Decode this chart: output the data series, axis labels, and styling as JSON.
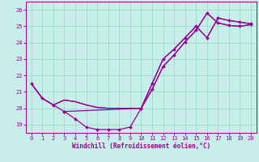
{
  "bg_color": "#c8eeea",
  "grid_color": "#99ddcc",
  "line_color": "#990099",
  "xlabel": "Windchill (Refroidissement éolien,°C)",
  "xlim": [
    -0.5,
    20.5
  ],
  "ylim": [
    18.5,
    26.5
  ],
  "yticks": [
    19,
    20,
    21,
    22,
    23,
    24,
    25,
    26
  ],
  "xticks": [
    0,
    1,
    2,
    3,
    4,
    5,
    6,
    7,
    8,
    9,
    10,
    11,
    12,
    13,
    14,
    15,
    16,
    17,
    18,
    19,
    20
  ],
  "curves": [
    {
      "x": [
        0,
        1,
        2,
        3,
        4,
        5,
        6,
        7,
        8,
        9,
        10,
        11,
        12,
        13,
        14,
        15,
        16,
        17,
        18,
        19,
        20
      ],
      "y": [
        21.5,
        20.6,
        20.2,
        19.8,
        19.35,
        18.85,
        18.7,
        18.7,
        18.7,
        18.85,
        20.0,
        21.15,
        22.55,
        23.25,
        24.05,
        24.75,
        25.8,
        25.2,
        25.05,
        25.0,
        25.1
      ],
      "marker": "D",
      "markersize": 2.0,
      "lw": 0.9
    },
    {
      "x": [
        0,
        1,
        2,
        3,
        4,
        5,
        6,
        7,
        8,
        9,
        10,
        11,
        12,
        13,
        14,
        15,
        16,
        17,
        18,
        19,
        20
      ],
      "y": [
        21.5,
        20.6,
        20.2,
        20.5,
        20.4,
        20.2,
        20.05,
        20.0,
        20.0,
        20.0,
        20.0,
        21.15,
        22.55,
        23.25,
        24.05,
        24.75,
        25.8,
        25.2,
        25.05,
        25.0,
        25.1
      ],
      "marker": null,
      "markersize": 0,
      "lw": 0.9
    },
    {
      "x": [
        0,
        1,
        2,
        3,
        4,
        5,
        6,
        7,
        8,
        9,
        10,
        11,
        12,
        13,
        14,
        15,
        16,
        17,
        18,
        19,
        20
      ],
      "y": [
        21.5,
        20.6,
        20.2,
        20.5,
        20.4,
        20.2,
        20.05,
        20.0,
        20.0,
        20.0,
        20.0,
        21.5,
        23.0,
        23.6,
        24.3,
        25.0,
        24.3,
        25.5,
        25.35,
        25.25,
        25.15
      ],
      "marker": null,
      "markersize": 0,
      "lw": 0.9
    },
    {
      "x": [
        3,
        10,
        11,
        12,
        13,
        14,
        15,
        16,
        17,
        18,
        19,
        20
      ],
      "y": [
        19.8,
        20.0,
        21.5,
        23.0,
        23.6,
        24.3,
        25.0,
        24.3,
        25.5,
        25.35,
        25.25,
        25.15
      ],
      "marker": "D",
      "markersize": 2.0,
      "lw": 0.9
    }
  ]
}
